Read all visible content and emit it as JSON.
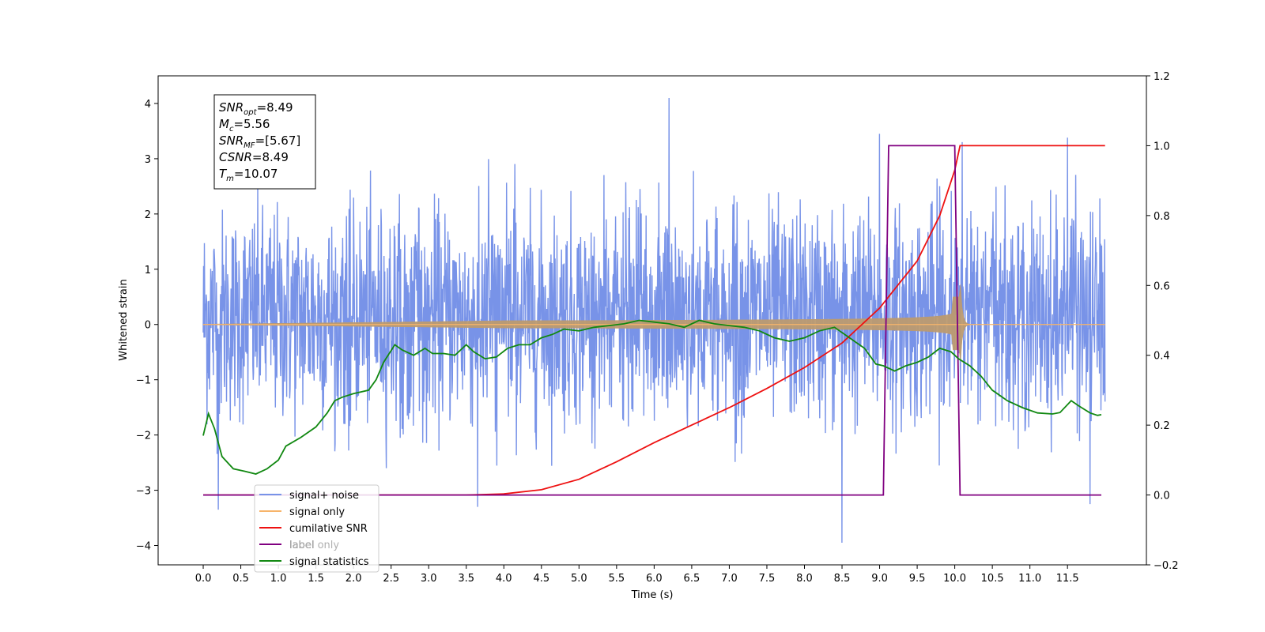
{
  "chart_data": {
    "type": "line",
    "xlabel": "Time (s)",
    "ylabel": "Whitened strain",
    "xlim": [
      -0.6,
      12.55
    ],
    "ylim": [
      -4.35,
      4.5
    ],
    "y2lim": [
      -0.2,
      1.2
    ],
    "x_ticks": [
      "0.0",
      "0.5",
      "1.0",
      "1.5",
      "2.0",
      "2.5",
      "3.0",
      "3.5",
      "4.0",
      "4.5",
      "5.0",
      "5.5",
      "6.0",
      "6.5",
      "7.0",
      "7.5",
      "8.0",
      "8.5",
      "9.0",
      "9.5",
      "10.0",
      "10.5",
      "11.0",
      "11.5"
    ],
    "x_tick_values": [
      0,
      0.5,
      1,
      1.5,
      2,
      2.5,
      3,
      3.5,
      4,
      4.5,
      5,
      5.5,
      6,
      6.5,
      7,
      7.5,
      8,
      8.5,
      9,
      9.5,
      10,
      10.5,
      11,
      11.5
    ],
    "y_ticks": [
      "−4",
      "−3",
      "−2",
      "−1",
      "0",
      "1",
      "2",
      "3",
      "4"
    ],
    "y_tick_values": [
      -4,
      -3,
      -2,
      -1,
      0,
      1,
      2,
      3,
      4
    ],
    "y2_ticks": [
      "−0.2",
      "0.0",
      "0.2",
      "0.4",
      "0.6",
      "0.8",
      "1.0",
      "1.2"
    ],
    "y2_tick_values": [
      -0.2,
      0,
      0.2,
      0.4,
      0.6,
      0.8,
      1.0,
      1.2
    ],
    "annotation": [
      {
        "base": "SNR",
        "sub": "opt",
        "rest": "=8.49"
      },
      {
        "base": "M",
        "sub": "c",
        "rest": "=5.56"
      },
      {
        "base": "SNR",
        "sub": "MF",
        "rest": "=[5.67]"
      },
      {
        "base": "CSNR",
        "sub": "",
        "rest": "=8.49"
      },
      {
        "base": "T",
        "sub": "m",
        "rest": "=10.07"
      }
    ],
    "legend_position": "lower-left",
    "series": [
      {
        "name": "signal+ noise",
        "color": "#7893e8",
        "axis": "left",
        "kind": "noise",
        "x_range": [
          0,
          12.0
        ],
        "envelope_upper": 2.4,
        "envelope_lower": -2.0,
        "peak_values": [
          {
            "x": 6.2,
            "y": 4.1
          },
          {
            "x": 9.0,
            "y": 3.45
          },
          {
            "x": 11.5,
            "y": 3.38
          },
          {
            "x": 10.1,
            "y": 3.3
          },
          {
            "x": 8.5,
            "y": -3.95
          },
          {
            "x": 0.2,
            "y": -3.35
          },
          {
            "x": 3.65,
            "y": -3.3
          },
          {
            "x": 11.8,
            "y": -3.25
          }
        ]
      },
      {
        "name": "signal only",
        "color": "#f7b46a",
        "axis": "left",
        "kind": "chirp",
        "x_range": [
          0,
          12.0
        ],
        "merger_time": 10.07,
        "peak_amplitude": 0.95
      },
      {
        "name": "cumilative SNR",
        "color": "#ee1111",
        "axis": "right",
        "x": [
          0,
          3.5,
          4.0,
          4.5,
          5.0,
          5.5,
          6.0,
          6.5,
          7.0,
          7.5,
          8.0,
          8.5,
          9.0,
          9.5,
          9.8,
          10.0,
          10.07,
          12.0
        ],
        "values": [
          0,
          0,
          0.003,
          0.015,
          0.045,
          0.095,
          0.15,
          0.2,
          0.25,
          0.305,
          0.365,
          0.435,
          0.535,
          0.67,
          0.8,
          0.93,
          1.0,
          1.0
        ]
      },
      {
        "name": "label",
        "color": "#800080",
        "axis": "right",
        "x": [
          0,
          9.05,
          9.12,
          10.0,
          10.07,
          11.95
        ],
        "values": [
          0,
          0,
          1.0,
          1.0,
          0,
          0
        ]
      },
      {
        "name": "label only",
        "color": "#dddddd",
        "axis": "right",
        "x": [],
        "values": []
      },
      {
        "name": "signal statistics",
        "color": "#118811",
        "axis": "right",
        "x": [
          0,
          0.07,
          0.15,
          0.25,
          0.4,
          0.55,
          0.7,
          0.85,
          1.0,
          1.1,
          1.3,
          1.5,
          1.65,
          1.75,
          1.85,
          2.0,
          2.2,
          2.3,
          2.4,
          2.55,
          2.65,
          2.8,
          2.95,
          3.05,
          3.2,
          3.35,
          3.5,
          3.6,
          3.75,
          3.9,
          4.05,
          4.2,
          4.35,
          4.5,
          4.65,
          4.8,
          5.0,
          5.2,
          5.4,
          5.6,
          5.8,
          6.0,
          6.2,
          6.4,
          6.6,
          6.8,
          7.0,
          7.2,
          7.4,
          7.6,
          7.8,
          8.0,
          8.2,
          8.4,
          8.6,
          8.8,
          8.95,
          9.05,
          9.2,
          9.35,
          9.5,
          9.65,
          9.8,
          9.95,
          10.05,
          10.2,
          10.35,
          10.5,
          10.7,
          10.9,
          11.1,
          11.3,
          11.4,
          11.55,
          11.65,
          11.8,
          11.9,
          11.95
        ],
        "values": [
          0.17,
          0.233,
          0.19,
          0.11,
          0.075,
          0.068,
          0.06,
          0.075,
          0.1,
          0.14,
          0.165,
          0.195,
          0.235,
          0.27,
          0.28,
          0.29,
          0.3,
          0.33,
          0.38,
          0.43,
          0.415,
          0.4,
          0.42,
          0.405,
          0.405,
          0.4,
          0.43,
          0.41,
          0.39,
          0.395,
          0.42,
          0.43,
          0.43,
          0.45,
          0.46,
          0.475,
          0.47,
          0.48,
          0.485,
          0.49,
          0.5,
          0.495,
          0.49,
          0.48,
          0.5,
          0.49,
          0.485,
          0.48,
          0.47,
          0.45,
          0.44,
          0.45,
          0.47,
          0.48,
          0.45,
          0.42,
          0.375,
          0.37,
          0.355,
          0.37,
          0.38,
          0.395,
          0.42,
          0.41,
          0.39,
          0.37,
          0.34,
          0.3,
          0.27,
          0.25,
          0.235,
          0.232,
          0.236,
          0.27,
          0.255,
          0.235,
          0.228,
          0.23
        ]
      }
    ]
  }
}
